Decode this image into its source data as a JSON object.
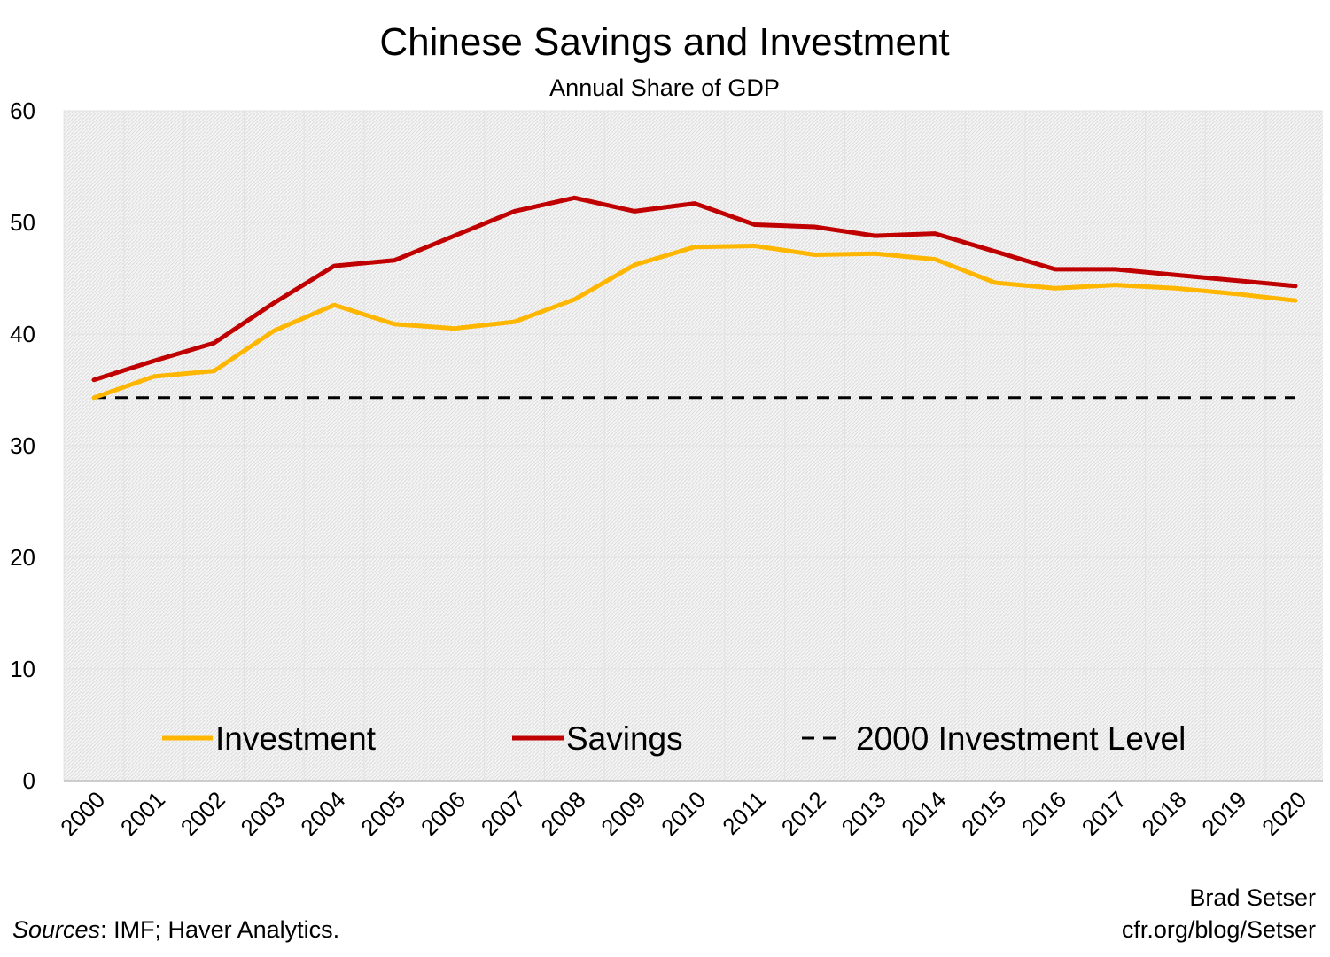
{
  "chart_data": {
    "type": "line",
    "title": "Chinese Savings and Investment",
    "subtitle": "Annual Share of GDP",
    "xlabel": "",
    "ylabel": "",
    "ylim": [
      0,
      60
    ],
    "yticks": [
      "0",
      "10",
      "20",
      "30",
      "40",
      "50",
      "60"
    ],
    "categories": [
      "2000",
      "2001",
      "2002",
      "2003",
      "2004",
      "2005",
      "2006",
      "2007",
      "2008",
      "2009",
      "2010",
      "2011",
      "2012",
      "2013",
      "2014",
      "2015",
      "2016",
      "2017",
      "2018",
      "2019",
      "2020"
    ],
    "grid": true,
    "legend_position": "bottom-inside",
    "series": [
      {
        "name": "Investment",
        "color": "#FFB600",
        "style": "solid",
        "values": [
          34.3,
          36.2,
          36.7,
          40.3,
          42.6,
          40.9,
          40.5,
          41.1,
          43.1,
          46.2,
          47.8,
          47.9,
          47.1,
          47.2,
          46.7,
          44.6,
          44.1,
          44.4,
          44.1,
          43.6,
          43.0
        ]
      },
      {
        "name": "Savings",
        "color": "#C00000",
        "style": "solid",
        "values": [
          35.9,
          37.6,
          39.2,
          42.8,
          46.1,
          46.6,
          48.8,
          51.0,
          52.2,
          51.0,
          51.7,
          49.8,
          49.6,
          48.8,
          49.0,
          47.4,
          45.8,
          45.8,
          45.3,
          44.8,
          44.3
        ]
      },
      {
        "name": "2000 Investment Level",
        "color": "#000000",
        "style": "dashed",
        "values": [
          34.3,
          34.3,
          34.3,
          34.3,
          34.3,
          34.3,
          34.3,
          34.3,
          34.3,
          34.3,
          34.3,
          34.3,
          34.3,
          34.3,
          34.3,
          34.3,
          34.3,
          34.3,
          34.3,
          34.3,
          34.3
        ]
      }
    ]
  },
  "footer": {
    "sources_label": "Sources",
    "sources_text": ": IMF; Haver Analytics.",
    "author": "Brad Setser",
    "url": "cfr.org/blog/Setser"
  }
}
